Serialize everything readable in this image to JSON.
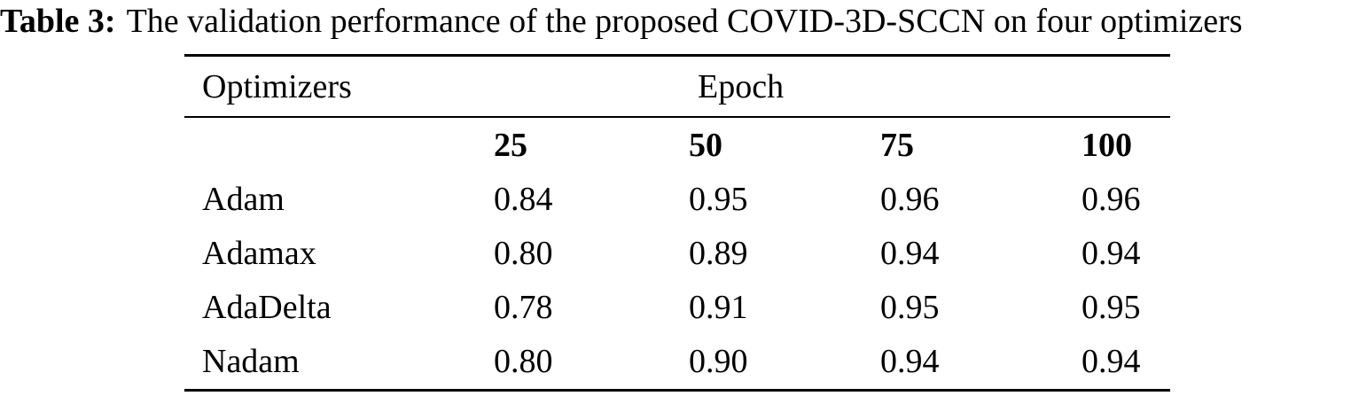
{
  "caption": {
    "label": "Table 3:",
    "text": "The validation performance of the proposed COVID-3D-SCCN on four optimizers"
  },
  "table": {
    "group_header": {
      "optimizers": "Optimizers",
      "epoch": "Epoch"
    },
    "epoch_values": [
      "25",
      "50",
      "75",
      "100"
    ],
    "rows": [
      {
        "optimizer": "Adam",
        "values": [
          "0.84",
          "0.95",
          "0.96",
          "0.96"
        ]
      },
      {
        "optimizer": "Adamax",
        "values": [
          "0.80",
          "0.89",
          "0.94",
          "0.94"
        ]
      },
      {
        "optimizer": "AdaDelta",
        "values": [
          "0.78",
          "0.91",
          "0.95",
          "0.95"
        ]
      },
      {
        "optimizer": "Nadam",
        "values": [
          "0.80",
          "0.90",
          "0.94",
          "0.94"
        ]
      }
    ]
  },
  "chart_data": {
    "type": "table",
    "title": "Table 3: The validation performance of the proposed COVID-3D-SCCN on four optimizers",
    "columns": [
      "Optimizers",
      "25",
      "50",
      "75",
      "100"
    ],
    "column_group": "Epoch",
    "rows": [
      [
        "Adam",
        0.84,
        0.95,
        0.96,
        0.96
      ],
      [
        "Adamax",
        0.8,
        0.89,
        0.94,
        0.94
      ],
      [
        "AdaDelta",
        0.78,
        0.91,
        0.95,
        0.95
      ],
      [
        "Nadam",
        0.8,
        0.9,
        0.94,
        0.94
      ]
    ]
  }
}
